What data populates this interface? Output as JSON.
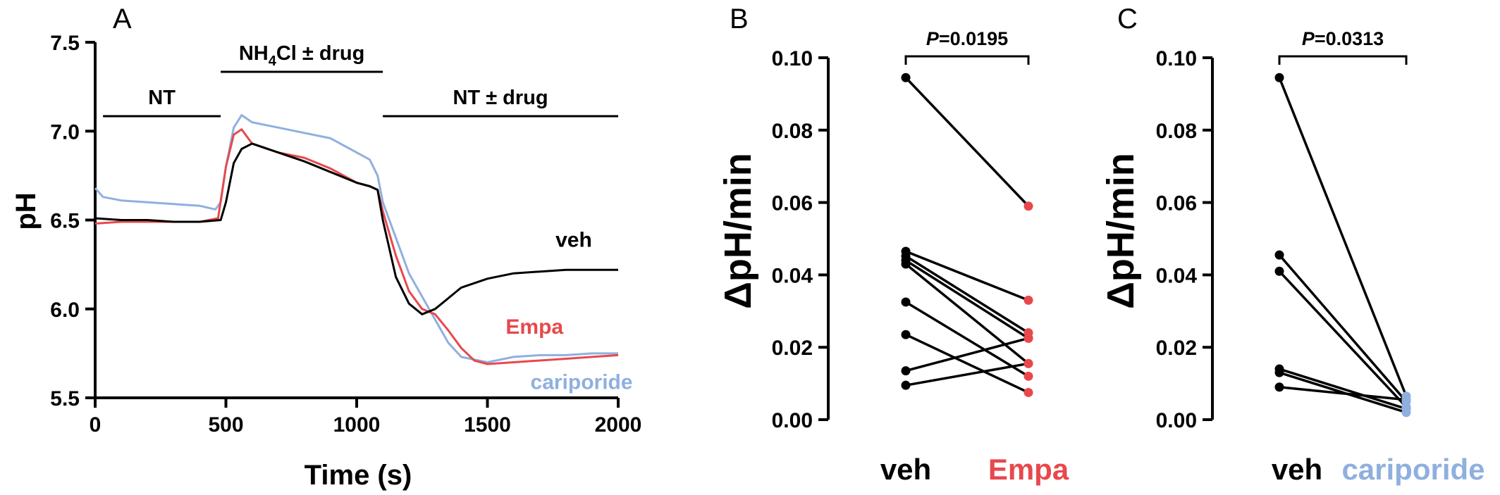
{
  "colors": {
    "veh": "#000000",
    "empa": "#e8484c",
    "cariporide": "#8fb0de"
  },
  "chart_data": [
    {
      "panel": "A",
      "type": "line",
      "xlabel": "Time (s)",
      "ylabel": "pH",
      "xlim": [
        0,
        2000
      ],
      "ylim": [
        5.5,
        7.5
      ],
      "xticks": [
        "0",
        "500",
        "1000",
        "1500",
        "2000"
      ],
      "yticks": [
        "5.5",
        "6.0",
        "6.5",
        "7.0",
        "7.5"
      ],
      "periods": [
        {
          "label": "NT",
          "start": 30,
          "end": 480
        },
        {
          "label_main": "NH",
          "label_sub": "4",
          "label_rest": "Cl ± drug",
          "start": 480,
          "end": 1100
        },
        {
          "label": "NT ± drug",
          "start": 1100,
          "end": 2000
        }
      ],
      "series": [
        {
          "name": "veh",
          "color": "#000000",
          "x": [
            0,
            100,
            200,
            300,
            400,
            480,
            500,
            530,
            560,
            600,
            700,
            800,
            900,
            1000,
            1050,
            1080,
            1100,
            1150,
            1200,
            1250,
            1300,
            1350,
            1400,
            1500,
            1600,
            1700,
            1800,
            1900,
            2000
          ],
          "y": [
            6.51,
            6.5,
            6.5,
            6.49,
            6.49,
            6.5,
            6.6,
            6.82,
            6.9,
            6.93,
            6.88,
            6.83,
            6.77,
            6.71,
            6.69,
            6.67,
            6.5,
            6.18,
            6.03,
            5.97,
            6.0,
            6.06,
            6.12,
            6.17,
            6.2,
            6.21,
            6.22,
            6.22,
            6.22
          ]
        },
        {
          "name": "Empa",
          "color": "#e8484c",
          "x": [
            0,
            100,
            200,
            300,
            400,
            470,
            500,
            530,
            560,
            600,
            700,
            800,
            900,
            1000,
            1050,
            1080,
            1100,
            1150,
            1200,
            1250,
            1300,
            1350,
            1400,
            1450,
            1500,
            1600,
            1700,
            1800,
            1900,
            2000
          ],
          "y": [
            6.48,
            6.49,
            6.49,
            6.49,
            6.49,
            6.51,
            6.8,
            6.98,
            7.01,
            6.93,
            6.88,
            6.85,
            6.79,
            6.71,
            6.69,
            6.67,
            6.55,
            6.3,
            6.1,
            6.0,
            5.97,
            5.88,
            5.78,
            5.71,
            5.69,
            5.7,
            5.71,
            5.72,
            5.73,
            5.74
          ]
        },
        {
          "name": "cariporide",
          "color": "#8fb0de",
          "x": [
            0,
            30,
            100,
            200,
            300,
            400,
            460,
            480,
            500,
            530,
            560,
            600,
            700,
            800,
            900,
            1000,
            1050,
            1080,
            1100,
            1150,
            1200,
            1250,
            1300,
            1350,
            1400,
            1500,
            1600,
            1700,
            1800,
            1900,
            2000
          ],
          "y": [
            6.68,
            6.63,
            6.61,
            6.6,
            6.59,
            6.58,
            6.56,
            6.6,
            6.8,
            7.02,
            7.09,
            7.05,
            7.02,
            6.99,
            6.96,
            6.88,
            6.84,
            6.75,
            6.6,
            6.4,
            6.2,
            6.07,
            5.94,
            5.81,
            5.73,
            5.7,
            5.73,
            5.74,
            5.74,
            5.75,
            5.75
          ]
        }
      ],
      "annotations": [
        {
          "text": "veh",
          "color": "#000000",
          "x": 1830,
          "y": 6.35
        },
        {
          "text": "Empa",
          "color": "#e8484c",
          "x": 1680,
          "y": 5.86
        },
        {
          "text": "cariporide",
          "color": "#8fb0de",
          "x": 1860,
          "y": 5.55
        }
      ]
    },
    {
      "panel": "B",
      "type": "scatter",
      "ylabel": "ΔpH/min",
      "ylim": [
        0.0,
        0.1
      ],
      "yticks": [
        "0.00",
        "0.02",
        "0.04",
        "0.06",
        "0.08",
        "0.10"
      ],
      "categories": [
        "veh",
        "Empa"
      ],
      "category_colors": [
        "#000000",
        "#e8484c"
      ],
      "p_value_label": "P",
      "p_value_text": "=0.0195",
      "pairs": [
        [
          0.0945,
          0.059
        ],
        [
          0.0465,
          0.033
        ],
        [
          0.0452,
          0.024
        ],
        [
          0.044,
          0.0225
        ],
        [
          0.043,
          0.0155
        ],
        [
          0.0325,
          0.012
        ],
        [
          0.0235,
          0.0075
        ],
        [
          0.0135,
          0.0225
        ],
        [
          0.0095,
          0.0155
        ]
      ]
    },
    {
      "panel": "C",
      "type": "scatter",
      "ylabel": "ΔpH/min",
      "ylim": [
        0.0,
        0.1
      ],
      "yticks": [
        "0.00",
        "0.02",
        "0.04",
        "0.06",
        "0.08",
        "0.10"
      ],
      "categories": [
        "veh",
        "cariporide"
      ],
      "category_colors": [
        "#000000",
        "#8fb0de"
      ],
      "p_value_label": "P",
      "p_value_text": "=0.0313",
      "pairs": [
        [
          0.0945,
          0.0065
        ],
        [
          0.0455,
          0.005
        ],
        [
          0.041,
          0.0035
        ],
        [
          0.014,
          0.003
        ],
        [
          0.013,
          0.002
        ],
        [
          0.009,
          0.0055
        ]
      ]
    }
  ]
}
